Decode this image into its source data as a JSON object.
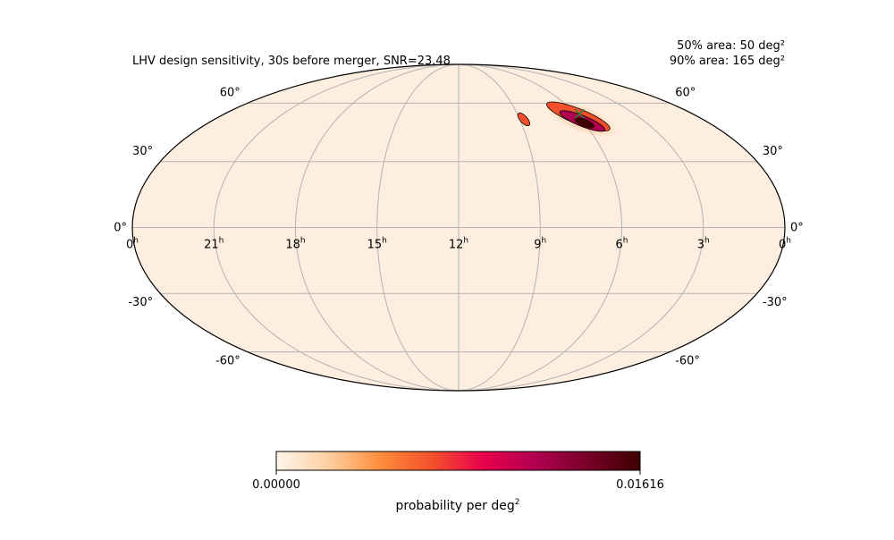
{
  "chart_data": {
    "type": "heatmap",
    "projection": "mollweide",
    "title": "LHV design sensitivity, 30s before merger, SNR=23.48",
    "area_50_label": "50% area: 50 deg²",
    "area_90_label": "90% area: 165 deg²",
    "ra_ticks": [
      {
        "hours": 24,
        "label": "0",
        "unit": "h"
      },
      {
        "hours": 21,
        "label": "21",
        "unit": "h"
      },
      {
        "hours": 18,
        "label": "18",
        "unit": "h"
      },
      {
        "hours": 15,
        "label": "15",
        "unit": "h"
      },
      {
        "hours": 12,
        "label": "12",
        "unit": "h"
      },
      {
        "hours": 9,
        "label": "9",
        "unit": "h"
      },
      {
        "hours": 6,
        "label": "6",
        "unit": "h"
      },
      {
        "hours": 3,
        "label": "3",
        "unit": "h"
      },
      {
        "hours": 0,
        "label": "0",
        "unit": "h"
      }
    ],
    "dec_ticks": [
      {
        "deg": 60,
        "label": "60°"
      },
      {
        "deg": 30,
        "label": "30°"
      },
      {
        "deg": 0,
        "label": "0°"
      },
      {
        "deg": -30,
        "label": "-30°"
      },
      {
        "deg": -60,
        "label": "-60°"
      }
    ],
    "ra_range_hours": [
      24,
      0
    ],
    "dec_range_deg": [
      -90,
      90
    ],
    "grid": true,
    "background_color": "#fdeee0",
    "regions": [
      {
        "name": "primary",
        "center_ra_hours": 6.2,
        "center_dec_deg": 50,
        "peak_probability": 0.01616
      },
      {
        "name": "secondary",
        "center_ra_hours": 8.8,
        "center_dec_deg": 51,
        "peak_probability": 0.004
      }
    ],
    "marker": {
      "ra_hours": 5.8,
      "dec_deg": 54,
      "symbol": "x",
      "color": "#2e7d32"
    },
    "colorbar": {
      "min_label": "0.00000",
      "max_label": "0.01616",
      "min": 0.0,
      "max": 0.01616,
      "label_main": "probability per deg",
      "label_sup": "2",
      "colormap": [
        "#fff5eb",
        "#fdd0a2",
        "#fd8d3c",
        "#f4502b",
        "#e8004d",
        "#b00050",
        "#780028",
        "#3d0000"
      ]
    }
  }
}
